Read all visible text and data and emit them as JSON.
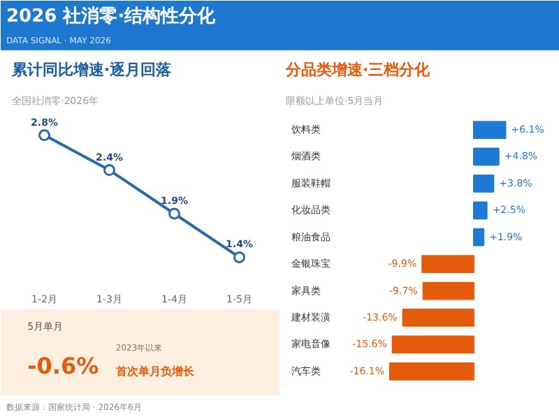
{
  "chart_data": [
    {
      "type": "other",
      "title": "2026 社消零·结构性分化",
      "subtitle": "DATA SIGNAL · MAY 2026",
      "annotations": [
        "数据来源：国家统计局 · 2026年6月"
      ]
    },
    {
      "type": "line",
      "title": "累计同比增速·逐月回落",
      "subtitle": "全国社消零·2026年",
      "categories": [
        "1-2月",
        "1-3月",
        "1-4月",
        "1-5月"
      ],
      "series": [
        {
          "color": "#2a6aa6",
          "values": [
            2.8,
            2.4,
            1.9,
            1.4
          ],
          "value_labels": [
            "2.8%",
            "2.4%",
            "1.9%",
            "1.4%"
          ]
        }
      ],
      "tick_labels": "x",
      "marker": "circle",
      "line_style": "solid",
      "annotations": [
        "5月单月",
        "-0.6%",
        "2023年以来",
        "首次单月负增长"
      ]
    },
    {
      "type": "bar",
      "orientation": "horizontal",
      "title": "分品类增速·三档分化",
      "subtitle": "限额以上单位·5月当月",
      "categories": [
        "饮料类",
        "烟酒类",
        "服装鞋帽",
        "化妆品类",
        "粮油食品",
        "金银珠宝",
        "家具类",
        "建材装潢",
        "家电音像",
        "汽车类"
      ],
      "values": [
        6.1,
        4.8,
        3.8,
        2.5,
        1.9,
        -9.9,
        -9.7,
        -13.6,
        -15.6,
        -16.1
      ],
      "colors": [
        "#1f7ad6",
        "#1f7ad6",
        "#1f7ad6",
        "#1f7ad6",
        "#1f7ad6",
        "#e35b0b",
        "#e35b0b",
        "#e35b0b",
        "#e35b0b",
        "#e35b0b"
      ],
      "value_labels": [
        "+6.1%",
        "+4.8%",
        "+3.8%",
        "+2.5%",
        "+1.9%",
        "-9.9%",
        "-9.7%",
        "-13.6%",
        "-15.6%",
        "-16.1%"
      ]
    }
  ]
}
